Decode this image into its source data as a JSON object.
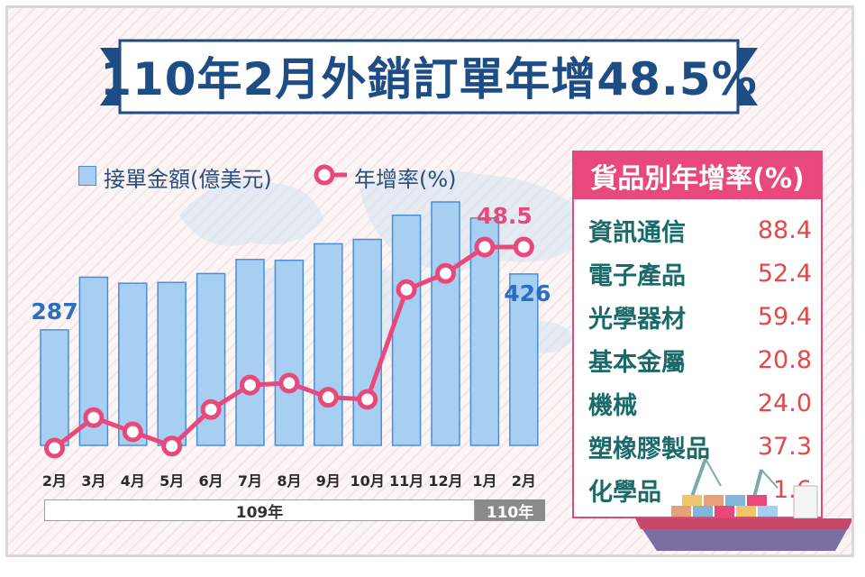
{
  "title": "110年2月外銷訂單年增48.5%",
  "legend": {
    "bars": "接單金額(億美元)",
    "line": "年增率(%)"
  },
  "year_groups": [
    {
      "label": "109年"
    },
    {
      "label": "110年"
    }
  ],
  "growth_panel": {
    "title": "貨品別年增率(%)",
    "rows": [
      {
        "name": "資訊通信",
        "value": "88.4"
      },
      {
        "name": "電子產品",
        "value": "52.4"
      },
      {
        "name": "光學器材",
        "value": "59.4"
      },
      {
        "name": "基本金屬",
        "value": "20.8"
      },
      {
        "name": "機械",
        "value": "24.0"
      },
      {
        "name": "塑橡膠製品",
        "value": "37.3"
      },
      {
        "name": "化學品",
        "value": "1.6"
      }
    ]
  },
  "colors": {
    "bar_fill": "#a7cff2",
    "bar_stroke": "#4a8fd6",
    "line": "#e8497a",
    "title": "#1e4d86",
    "value_label_bar": "#2a6fc4",
    "value_label_line": "#e8497a"
  },
  "chart_data": {
    "type": "bar+line",
    "categories": [
      "2月",
      "3月",
      "4月",
      "5月",
      "6月",
      "7月",
      "8月",
      "9月",
      "10月",
      "11月",
      "12月",
      "1月",
      "2月"
    ],
    "series": [
      {
        "name": "接單金額(億美元)",
        "type": "bar",
        "values": [
          287,
          418,
          403,
          405,
          427,
          462,
          460,
          501,
          512,
          572,
          605,
          565,
          426
        ]
      },
      {
        "name": "年增率(%)",
        "type": "line",
        "values": [
          -1.0,
          6.5,
          3.0,
          -0.5,
          8.5,
          14.5,
          15.0,
          11.5,
          11.0,
          38.0,
          42.0,
          48.5,
          48.5
        ]
      }
    ],
    "data_labels": {
      "first_bar": "287",
      "last_bar": "426",
      "last_point": "48.5"
    },
    "bar_ylim": [
      0,
      650
    ],
    "line_ylim": [
      -5,
      55
    ],
    "legend_position": "top-left",
    "grid": false
  }
}
